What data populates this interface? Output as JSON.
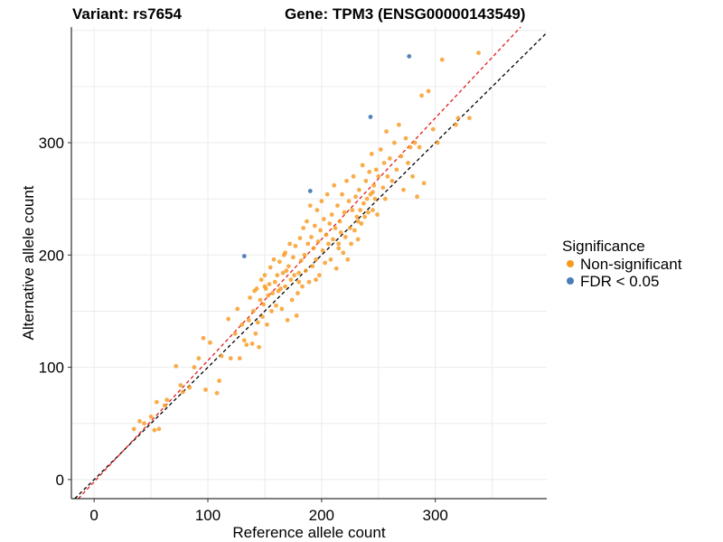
{
  "chart_data": {
    "type": "scatter",
    "title_left": "Variant: rs7654",
    "title_right": "Gene: TPM3 (ENSG00000143549)",
    "xlabel": "Reference allele count",
    "ylabel": "Alternative allele count",
    "xlim": [
      -20,
      398
    ],
    "ylim": [
      -17,
      403
    ],
    "xticks": [
      0,
      100,
      200,
      300
    ],
    "yticks": [
      0,
      100,
      200,
      300
    ],
    "grid": true,
    "legend_position": "right",
    "legend_title": "Significance",
    "reference_lines": [
      {
        "style": "dashed",
        "color": "#000000",
        "slope": 1.0,
        "intercept": 0
      },
      {
        "style": "dashed",
        "color": "#e41a1c",
        "slope": 1.08,
        "intercept": -2
      }
    ],
    "series": [
      {
        "name": "Non-significant",
        "color": "#f8991d",
        "points": [
          [
            35,
            45
          ],
          [
            40,
            52
          ],
          [
            44,
            50
          ],
          [
            50,
            56
          ],
          [
            53,
            44
          ],
          [
            55,
            69
          ],
          [
            57,
            45
          ],
          [
            62,
            66
          ],
          [
            64,
            71
          ],
          [
            72,
            101
          ],
          [
            76,
            84
          ],
          [
            78,
            78
          ],
          [
            84,
            82
          ],
          [
            88,
            100
          ],
          [
            92,
            108
          ],
          [
            96,
            126
          ],
          [
            98,
            80
          ],
          [
            102,
            122
          ],
          [
            108,
            77
          ],
          [
            110,
            88
          ],
          [
            112,
            110
          ],
          [
            118,
            143
          ],
          [
            120,
            108
          ],
          [
            124,
            130
          ],
          [
            126,
            152
          ],
          [
            128,
            108
          ],
          [
            130,
            138
          ],
          [
            132,
            124
          ],
          [
            134,
            120
          ],
          [
            136,
            142
          ],
          [
            137,
            162
          ],
          [
            139,
            121
          ],
          [
            140,
            150
          ],
          [
            141,
            168
          ],
          [
            142,
            130
          ],
          [
            143,
            170
          ],
          [
            144,
            140
          ],
          [
            145,
            118
          ],
          [
            146,
            160
          ],
          [
            147,
            178
          ],
          [
            148,
            145
          ],
          [
            149,
            156
          ],
          [
            150,
            182
          ],
          [
            151,
            170
          ],
          [
            152,
            138
          ],
          [
            153,
            164
          ],
          [
            154,
            174
          ],
          [
            155,
            189
          ],
          [
            156,
            150
          ],
          [
            157,
            166
          ],
          [
            158,
            196
          ],
          [
            159,
            176
          ],
          [
            160,
            155
          ],
          [
            161,
            182
          ],
          [
            162,
            168
          ],
          [
            163,
            194
          ],
          [
            164,
            170
          ],
          [
            165,
            152
          ],
          [
            166,
            184
          ],
          [
            167,
            200
          ],
          [
            168,
            172
          ],
          [
            169,
            186
          ],
          [
            170,
            142
          ],
          [
            171,
            190
          ],
          [
            172,
            210
          ],
          [
            173,
            178
          ],
          [
            174,
            160
          ],
          [
            175,
            198
          ],
          [
            176,
            182
          ],
          [
            177,
            208
          ],
          [
            178,
            146
          ],
          [
            179,
            166
          ],
          [
            180,
            184
          ],
          [
            181,
            215
          ],
          [
            182,
            195
          ],
          [
            183,
            172
          ],
          [
            184,
            224
          ],
          [
            185,
            200
          ],
          [
            186,
            186
          ],
          [
            187,
            230
          ],
          [
            188,
            210
          ],
          [
            189,
            176
          ],
          [
            190,
            244
          ],
          [
            191,
            216
          ],
          [
            192,
            190
          ],
          [
            193,
            206
          ],
          [
            194,
            226
          ],
          [
            195,
            196
          ],
          [
            196,
            240
          ],
          [
            197,
            212
          ],
          [
            198,
            182
          ],
          [
            199,
            222
          ],
          [
            200,
            248
          ],
          [
            201,
            204
          ],
          [
            202,
            232
          ],
          [
            203,
            193
          ],
          [
            204,
            218
          ],
          [
            205,
            254
          ],
          [
            206,
            210
          ],
          [
            207,
            228
          ],
          [
            208,
            196
          ],
          [
            209,
            236
          ],
          [
            210,
            214
          ],
          [
            211,
            262
          ],
          [
            212,
            224
          ],
          [
            213,
            188
          ],
          [
            214,
            244
          ],
          [
            215,
            206
          ],
          [
            216,
            230
          ],
          [
            217,
            220
          ],
          [
            218,
            254
          ],
          [
            219,
            202
          ],
          [
            220,
            238
          ],
          [
            221,
            216
          ],
          [
            222,
            266
          ],
          [
            223,
            196
          ],
          [
            224,
            248
          ],
          [
            225,
            224
          ],
          [
            226,
            210
          ],
          [
            227,
            240
          ],
          [
            228,
            270
          ],
          [
            229,
            222
          ],
          [
            230,
            252
          ],
          [
            231,
            234
          ],
          [
            232,
            214
          ],
          [
            233,
            258
          ],
          [
            234,
            240
          ],
          [
            235,
            228
          ],
          [
            236,
            280
          ],
          [
            237,
            246
          ],
          [
            238,
            234
          ],
          [
            239,
            266
          ],
          [
            240,
            250
          ],
          [
            241,
            238
          ],
          [
            242,
            274
          ],
          [
            243,
            254
          ],
          [
            244,
            290
          ],
          [
            245,
            240
          ],
          [
            246,
            262
          ],
          [
            247,
            250
          ],
          [
            248,
            276
          ],
          [
            249,
            236
          ],
          [
            250,
            270
          ],
          [
            252,
            294
          ],
          [
            254,
            260
          ],
          [
            255,
            282
          ],
          [
            256,
            250
          ],
          [
            257,
            310
          ],
          [
            258,
            270
          ],
          [
            260,
            286
          ],
          [
            262,
            266
          ],
          [
            264,
            300
          ],
          [
            266,
            276
          ],
          [
            268,
            316
          ],
          [
            270,
            288
          ],
          [
            272,
            258
          ],
          [
            274,
            304
          ],
          [
            276,
            282
          ],
          [
            278,
            296
          ],
          [
            280,
            270
          ],
          [
            282,
            300
          ],
          [
            284,
            252
          ],
          [
            286,
            296
          ],
          [
            288,
            342
          ],
          [
            290,
            264
          ],
          [
            294,
            346
          ],
          [
            298,
            312
          ],
          [
            302,
            300
          ],
          [
            306,
            374
          ],
          [
            318,
            316
          ],
          [
            320,
            322
          ],
          [
            330,
            322
          ],
          [
            338,
            380
          ],
          [
            150,
            172
          ],
          [
            168,
            202
          ],
          [
            180,
            176
          ],
          [
            195,
            178
          ],
          [
            215,
            210
          ],
          [
            232,
            230
          ],
          [
            245,
            256
          ]
        ]
      },
      {
        "name": "FDR < 0.05",
        "color": "#4a7cb5",
        "points": [
          [
            132,
            199
          ],
          [
            190,
            257
          ],
          [
            243,
            323
          ],
          [
            277,
            377
          ]
        ]
      }
    ]
  }
}
